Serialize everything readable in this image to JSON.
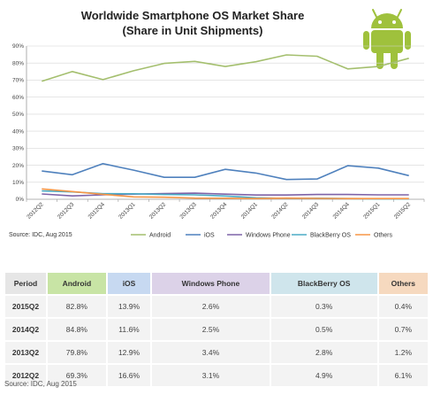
{
  "chart_data": {
    "type": "line",
    "title": "Worldwide Smartphone OS Market Share",
    "subtitle": "(Share in Unit Shipments)",
    "categories": [
      "2012Q2",
      "2012Q3",
      "2012Q4",
      "2013Q1",
      "2013Q2",
      "2013Q3",
      "2013Q4",
      "2014Q1",
      "2014Q2",
      "2014Q3",
      "2014Q4",
      "2015Q1",
      "2015Q2"
    ],
    "yticks": [
      "0%",
      "10%",
      "20%",
      "30%",
      "40%",
      "50%",
      "60%",
      "70%",
      "80%",
      "90%"
    ],
    "ylim": [
      0,
      90
    ],
    "grid": true,
    "legend_position": "bottom",
    "series": [
      {
        "name": "Android",
        "color": "#a4bf6e",
        "values": [
          69.3,
          75.0,
          70.3,
          75.5,
          79.8,
          81.0,
          78.0,
          80.8,
          84.8,
          84.0,
          76.6,
          78.0,
          82.8
        ]
      },
      {
        "name": "iOS",
        "color": "#4f81bd",
        "values": [
          16.6,
          14.4,
          20.9,
          17.1,
          12.9,
          12.9,
          17.6,
          15.4,
          11.6,
          11.9,
          19.7,
          18.3,
          13.9
        ]
      },
      {
        "name": "Windows Phone",
        "color": "#7e63a8",
        "values": [
          3.1,
          2.0,
          2.6,
          3.0,
          3.4,
          3.6,
          3.0,
          2.5,
          2.5,
          2.8,
          2.8,
          2.6,
          2.6
        ]
      },
      {
        "name": "BlackBerry OS",
        "color": "#4bacc6",
        "values": [
          4.9,
          4.3,
          3.3,
          3.2,
          2.8,
          2.6,
          1.9,
          0.9,
          0.5,
          0.6,
          0.4,
          0.3,
          0.3
        ]
      },
      {
        "name": "Others",
        "color": "#f79646",
        "values": [
          6.1,
          4.5,
          2.9,
          1.4,
          1.2,
          0.7,
          0.6,
          0.4,
          0.7,
          0.5,
          0.4,
          0.4,
          0.4
        ]
      }
    ],
    "source": "Source: IDC, Aug 2015"
  },
  "logo": {
    "icon": "android-robot-icon",
    "color": "#9fc13c"
  },
  "table": {
    "headers": [
      "Period",
      "Android",
      "iOS",
      "Windows Phone",
      "BlackBerry OS",
      "Others"
    ],
    "rows": [
      {
        "period": "2015Q2",
        "android": "82.8%",
        "ios": "13.9%",
        "wp": "2.6%",
        "bb": "0.3%",
        "others": "0.4%"
      },
      {
        "period": "2014Q2",
        "android": "84.8%",
        "ios": "11.6%",
        "wp": "2.5%",
        "bb": "0.5%",
        "others": "0.7%"
      },
      {
        "period": "2013Q2",
        "android": "79.8%",
        "ios": "12.9%",
        "wp": "3.4%",
        "bb": "2.8%",
        "others": "1.2%"
      },
      {
        "period": "2012Q2",
        "android": "69.3%",
        "ios": "16.6%",
        "wp": "3.1%",
        "bb": "4.9%",
        "others": "6.1%"
      }
    ],
    "source": "Source: IDC, Aug 2015"
  }
}
